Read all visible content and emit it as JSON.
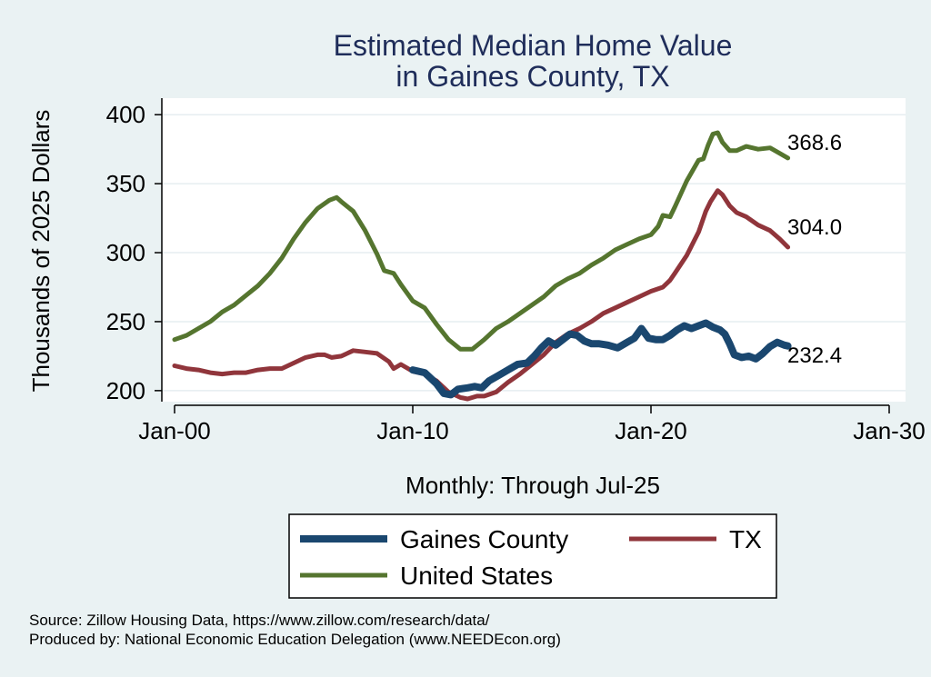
{
  "chart_data": {
    "type": "line",
    "title": "Estimated Median Home Value",
    "subtitle": "in Gaines County, TX",
    "ylabel": "Thousands of 2025 Dollars",
    "xlabel": "Monthly: Through Jul-25",
    "x_ticks": [
      "Jan-00",
      "Jan-10",
      "Jan-20",
      "Jan-30"
    ],
    "x_range": [
      2000,
      2030
    ],
    "ylim": [
      192,
      412
    ],
    "y_ticks": [
      "200",
      "250",
      "300",
      "350",
      "400"
    ],
    "grid": true,
    "legend_position": "bottom",
    "series": [
      {
        "name": "Gaines County",
        "color": "#1a476f",
        "end_label": "232.4",
        "points": [
          [
            2010.0,
            215
          ],
          [
            2010.5,
            213
          ],
          [
            2011.0,
            205
          ],
          [
            2011.3,
            198
          ],
          [
            2011.6,
            197
          ],
          [
            2011.9,
            201
          ],
          [
            2012.3,
            202
          ],
          [
            2012.6,
            203
          ],
          [
            2012.9,
            202
          ],
          [
            2013.2,
            207
          ],
          [
            2013.6,
            211
          ],
          [
            2014.0,
            215
          ],
          [
            2014.4,
            219
          ],
          [
            2014.8,
            220
          ],
          [
            2015.1,
            225
          ],
          [
            2015.4,
            231
          ],
          [
            2015.7,
            236
          ],
          [
            2016.0,
            233
          ],
          [
            2016.3,
            237
          ],
          [
            2016.6,
            241
          ],
          [
            2016.9,
            240
          ],
          [
            2017.2,
            236
          ],
          [
            2017.5,
            234
          ],
          [
            2017.8,
            234
          ],
          [
            2018.2,
            233
          ],
          [
            2018.6,
            231
          ],
          [
            2019.0,
            235
          ],
          [
            2019.3,
            238
          ],
          [
            2019.6,
            245
          ],
          [
            2019.9,
            238
          ],
          [
            2020.2,
            237
          ],
          [
            2020.5,
            237
          ],
          [
            2020.8,
            240
          ],
          [
            2021.1,
            244
          ],
          [
            2021.4,
            247
          ],
          [
            2021.7,
            245
          ],
          [
            2022.0,
            247
          ],
          [
            2022.3,
            249
          ],
          [
            2022.6,
            246
          ],
          [
            2022.9,
            244
          ],
          [
            2023.1,
            241
          ],
          [
            2023.3,
            234
          ],
          [
            2023.5,
            226
          ],
          [
            2023.8,
            224
          ],
          [
            2024.1,
            225
          ],
          [
            2024.4,
            223
          ],
          [
            2024.7,
            227
          ],
          [
            2025.0,
            232
          ],
          [
            2025.3,
            235
          ],
          [
            2025.6,
            233
          ],
          [
            2025.75,
            232.4
          ]
        ]
      },
      {
        "name": "TX",
        "color": "#90353b",
        "end_label": "304.0",
        "points": [
          [
            2000.0,
            218
          ],
          [
            2000.5,
            216
          ],
          [
            2001.0,
            215
          ],
          [
            2001.5,
            213
          ],
          [
            2002.0,
            212
          ],
          [
            2002.5,
            213
          ],
          [
            2003.0,
            213
          ],
          [
            2003.5,
            215
          ],
          [
            2004.0,
            216
          ],
          [
            2004.5,
            216
          ],
          [
            2005.0,
            220
          ],
          [
            2005.5,
            224
          ],
          [
            2006.0,
            226
          ],
          [
            2006.3,
            226
          ],
          [
            2006.6,
            224
          ],
          [
            2007.0,
            225
          ],
          [
            2007.5,
            229
          ],
          [
            2008.0,
            228
          ],
          [
            2008.5,
            227
          ],
          [
            2009.0,
            221
          ],
          [
            2009.2,
            216
          ],
          [
            2009.5,
            219
          ],
          [
            2010.0,
            214
          ],
          [
            2010.5,
            212
          ],
          [
            2011.0,
            207
          ],
          [
            2011.5,
            199
          ],
          [
            2012.0,
            195
          ],
          [
            2012.3,
            194
          ],
          [
            2012.7,
            196
          ],
          [
            2013.0,
            196
          ],
          [
            2013.5,
            199
          ],
          [
            2014.0,
            206
          ],
          [
            2014.5,
            212
          ],
          [
            2015.0,
            219
          ],
          [
            2015.5,
            226
          ],
          [
            2016.0,
            235
          ],
          [
            2016.5,
            241
          ],
          [
            2017.0,
            245
          ],
          [
            2017.5,
            250
          ],
          [
            2018.0,
            256
          ],
          [
            2018.5,
            260
          ],
          [
            2019.0,
            264
          ],
          [
            2019.5,
            268
          ],
          [
            2020.0,
            272
          ],
          [
            2020.5,
            275
          ],
          [
            2020.8,
            280
          ],
          [
            2021.0,
            285
          ],
          [
            2021.5,
            298
          ],
          [
            2022.0,
            315
          ],
          [
            2022.3,
            330
          ],
          [
            2022.5,
            337
          ],
          [
            2022.8,
            345
          ],
          [
            2023.0,
            342
          ],
          [
            2023.3,
            334
          ],
          [
            2023.6,
            329
          ],
          [
            2024.0,
            326
          ],
          [
            2024.5,
            320
          ],
          [
            2025.0,
            316
          ],
          [
            2025.4,
            310
          ],
          [
            2025.75,
            304
          ]
        ]
      },
      {
        "name": "United States",
        "color": "#55752f",
        "end_label": "368.6",
        "points": [
          [
            2000.0,
            237
          ],
          [
            2000.5,
            240
          ],
          [
            2001.0,
            245
          ],
          [
            2001.5,
            250
          ],
          [
            2002.0,
            257
          ],
          [
            2002.5,
            262
          ],
          [
            2003.0,
            269
          ],
          [
            2003.5,
            276
          ],
          [
            2004.0,
            285
          ],
          [
            2004.5,
            296
          ],
          [
            2005.0,
            310
          ],
          [
            2005.5,
            322
          ],
          [
            2006.0,
            332
          ],
          [
            2006.5,
            338
          ],
          [
            2006.8,
            340
          ],
          [
            2007.0,
            337
          ],
          [
            2007.5,
            330
          ],
          [
            2008.0,
            316
          ],
          [
            2008.5,
            299
          ],
          [
            2008.8,
            287
          ],
          [
            2009.2,
            285
          ],
          [
            2009.5,
            277
          ],
          [
            2010.0,
            265
          ],
          [
            2010.5,
            260
          ],
          [
            2011.0,
            248
          ],
          [
            2011.5,
            237
          ],
          [
            2012.0,
            230
          ],
          [
            2012.5,
            230
          ],
          [
            2013.0,
            237
          ],
          [
            2013.5,
            245
          ],
          [
            2014.0,
            250
          ],
          [
            2014.5,
            256
          ],
          [
            2015.0,
            262
          ],
          [
            2015.5,
            268
          ],
          [
            2016.0,
            276
          ],
          [
            2016.5,
            281
          ],
          [
            2017.0,
            285
          ],
          [
            2017.5,
            291
          ],
          [
            2018.0,
            296
          ],
          [
            2018.5,
            302
          ],
          [
            2019.0,
            306
          ],
          [
            2019.5,
            310
          ],
          [
            2020.0,
            313
          ],
          [
            2020.3,
            319
          ],
          [
            2020.5,
            327
          ],
          [
            2020.8,
            326
          ],
          [
            2021.0,
            333
          ],
          [
            2021.5,
            352
          ],
          [
            2022.0,
            367
          ],
          [
            2022.2,
            368
          ],
          [
            2022.4,
            378
          ],
          [
            2022.6,
            386
          ],
          [
            2022.8,
            387
          ],
          [
            2023.0,
            380
          ],
          [
            2023.3,
            374
          ],
          [
            2023.6,
            374
          ],
          [
            2024.0,
            377
          ],
          [
            2024.5,
            375
          ],
          [
            2025.0,
            376
          ],
          [
            2025.4,
            372
          ],
          [
            2025.75,
            368.6
          ]
        ]
      }
    ]
  },
  "notes": {
    "source": "Source: Zillow Housing Data, https://www.zillow.com/research/data/",
    "produced": "Produced by: National Economic Education Delegation (www.NEEDEcon.org)"
  }
}
